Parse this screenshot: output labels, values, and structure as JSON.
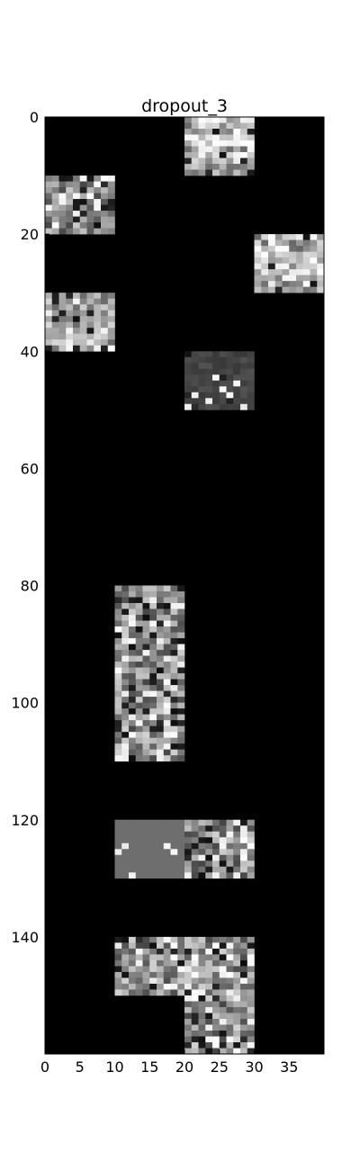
{
  "figure_title": "dropout_3",
  "chart_data": {
    "type": "heatmap",
    "title": "dropout_3",
    "colormap": "gray",
    "grid": false,
    "background_value": 0,
    "xlim": [
      0,
      40
    ],
    "ylim": [
      160,
      0
    ],
    "x_ticks": [
      0,
      5,
      10,
      15,
      20,
      25,
      30,
      35
    ],
    "y_ticks": [
      0,
      20,
      40,
      60,
      80,
      100,
      120,
      140
    ],
    "tile_size": [
      10,
      10
    ],
    "nonzero_tiles": [
      {
        "col_start": 20,
        "row_start": 0,
        "pattern": "bright-bands"
      },
      {
        "col_start": 0,
        "row_start": 10,
        "pattern": "light-dark-noise"
      },
      {
        "col_start": 30,
        "row_start": 20,
        "pattern": "bright-bands"
      },
      {
        "col_start": 0,
        "row_start": 30,
        "pattern": "light-noise"
      },
      {
        "col_start": 20,
        "row_start": 40,
        "pattern": "dark-gray-sparse"
      },
      {
        "col_start": 10,
        "row_start": 80,
        "pattern": "light-dark-noise"
      },
      {
        "col_start": 10,
        "row_start": 90,
        "pattern": "light-dark-noise"
      },
      {
        "col_start": 10,
        "row_start": 100,
        "pattern": "light-dark-noise"
      },
      {
        "col_start": 10,
        "row_start": 120,
        "pattern": "uniform-mid-gray"
      },
      {
        "col_start": 20,
        "row_start": 120,
        "pattern": "light-dark-noise"
      },
      {
        "col_start": 10,
        "row_start": 140,
        "pattern": "light-dark-noise"
      },
      {
        "col_start": 20,
        "row_start": 140,
        "pattern": "light-dark-noise"
      },
      {
        "col_start": 20,
        "row_start": 150,
        "pattern": "light-dark-noise"
      }
    ]
  }
}
